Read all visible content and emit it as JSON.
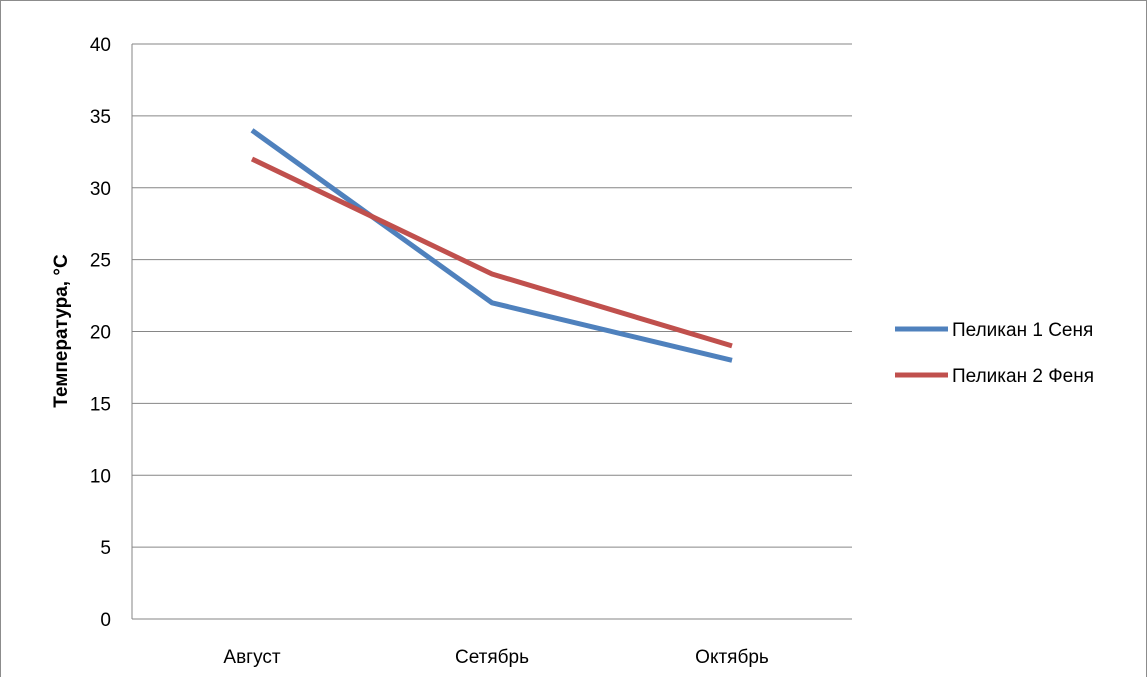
{
  "chart_data": {
    "type": "line",
    "title": "",
    "xlabel": "",
    "ylabel": "Температура, °С",
    "categories": [
      "Август",
      "Сетябрь",
      "Октябрь"
    ],
    "ylim": [
      0,
      40
    ],
    "yticks": [
      0,
      5,
      10,
      15,
      20,
      25,
      30,
      35,
      40
    ],
    "grid": true,
    "legend_position": "right",
    "series": [
      {
        "name": "Пеликан 1 Сеня",
        "values": [
          34,
          22,
          18
        ],
        "color": "#4f81bd"
      },
      {
        "name": "Пеликан 2 Феня",
        "values": [
          32,
          24,
          19
        ],
        "color": "#c0504d"
      }
    ]
  }
}
